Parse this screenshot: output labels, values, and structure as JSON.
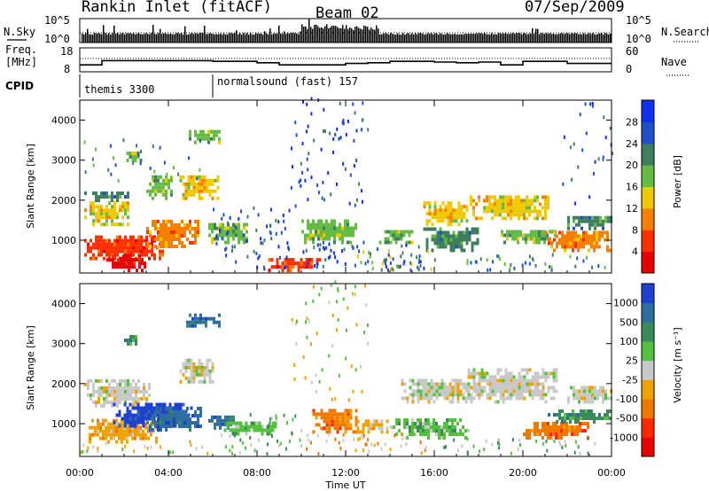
{
  "header": {
    "station": "Rankin Inlet (fitACF)",
    "beam": "Beam 02",
    "date": "07/Sep/2009"
  },
  "strips": {
    "nsky_label": "N.Sky",
    "nsky_ticks": [
      "10^5",
      "10^0"
    ],
    "nsearch_label": "N.Search",
    "nsearch_ticks": [
      "10^5",
      "10^0"
    ],
    "freq_label": "Freq.",
    "freq_unit": "[MHz]",
    "freq_ticks": [
      "18",
      "8"
    ],
    "nave_label": "Nave",
    "nave_ticks": [
      "60",
      "0"
    ],
    "cpid_label": "CPID",
    "cpid_segments": [
      {
        "name": "themis 3300",
        "start_hour": 0
      },
      {
        "name": "normalsound (fast) 157",
        "start_hour": 6
      }
    ]
  },
  "colors": {
    "power": [
      "#1030f0",
      "#2050c8",
      "#3e7e5e",
      "#66bb44",
      "#f0c800",
      "#f58000",
      "#ff3000",
      "#e60000"
    ],
    "velocity": [
      "#2040d0",
      "#2e6e9e",
      "#3b8b5a",
      "#55c040",
      "#c8c8c8",
      "#f0a000",
      "#f07800",
      "#ff2a00",
      "#e80000"
    ]
  },
  "chart_data": [
    {
      "type": "heatmap",
      "panel": "power",
      "ylabel": "Slant Range [km]",
      "y_ticks": [
        "4000",
        "3000",
        "2000",
        "1000"
      ],
      "ylim": [
        180,
        4500
      ],
      "x_ticks": [
        "00:00",
        "04:00",
        "08:00",
        "12:00",
        "16:00",
        "20:00",
        "00:00"
      ],
      "xlim_hours": [
        0,
        24
      ],
      "colorbar_label": "Power [dB]",
      "colorbar_ticks": [
        "28",
        "24",
        "20",
        "16",
        "12",
        "8",
        "4"
      ],
      "colorbar_range": [
        0,
        32
      ],
      "regions": [
        {
          "t": [
            0.2,
            3.8
          ],
          "r": [
            500,
            1100
          ],
          "level": 6
        },
        {
          "t": [
            3.0,
            5.4
          ],
          "r": [
            800,
            1500
          ],
          "level": 5
        },
        {
          "t": [
            0.2,
            2.2
          ],
          "r": [
            1350,
            1900
          ],
          "level": 4
        },
        {
          "t": [
            0.2,
            2.2
          ],
          "r": [
            1950,
            2200
          ],
          "level": 2
        },
        {
          "t": [
            1.2,
            3.0
          ],
          "r": [
            200,
            600
          ],
          "level": 7
        },
        {
          "t": [
            3.0,
            4.2
          ],
          "r": [
            2000,
            2600
          ],
          "level": 3
        },
        {
          "t": [
            4.5,
            6.2
          ],
          "r": [
            2000,
            2600
          ],
          "level": 4
        },
        {
          "t": [
            4.8,
            6.3
          ],
          "r": [
            3400,
            3700
          ],
          "level": 3
        },
        {
          "t": [
            2.1,
            2.8
          ],
          "r": [
            2950,
            3200
          ],
          "level": 3
        },
        {
          "t": [
            5.8,
            7.5
          ],
          "r": [
            900,
            1400
          ],
          "level": 3
        },
        {
          "t": [
            8.5,
            10.8
          ],
          "r": [
            200,
            500
          ],
          "level": 6
        },
        {
          "t": [
            10.0,
            12.5
          ],
          "r": [
            900,
            1450
          ],
          "level": 3
        },
        {
          "t": [
            13.5,
            15.0
          ],
          "r": [
            900,
            1250
          ],
          "level": 3
        },
        {
          "t": [
            15.5,
            17.5
          ],
          "r": [
            1350,
            1900
          ],
          "level": 4
        },
        {
          "t": [
            15.5,
            18.0
          ],
          "r": [
            700,
            1300
          ],
          "level": 2
        },
        {
          "t": [
            17.6,
            21.2
          ],
          "r": [
            1500,
            2100
          ],
          "level": 4
        },
        {
          "t": [
            19.0,
            21.5
          ],
          "r": [
            900,
            1250
          ],
          "level": 3
        },
        {
          "t": [
            21.0,
            24.0
          ],
          "r": [
            700,
            1200
          ],
          "level": 5
        },
        {
          "t": [
            22.0,
            24.0
          ],
          "r": [
            1250,
            1600
          ],
          "level": 2
        }
      ],
      "sparse": [
        {
          "t": [
            6.0,
            9.5
          ],
          "r": [
            200,
            1800
          ],
          "level": 1,
          "density": 0.12
        },
        {
          "t": [
            9.5,
            13.0
          ],
          "r": [
            1800,
            4500
          ],
          "level": 1,
          "density": 0.08
        },
        {
          "t": [
            10.0,
            15.5
          ],
          "r": [
            200,
            900
          ],
          "level": 1,
          "density": 0.18
        },
        {
          "t": [
            12.5,
            16.0
          ],
          "r": [
            200,
            700
          ],
          "level": 3,
          "density": 0.15
        },
        {
          "t": [
            17.0,
            24.0
          ],
          "r": [
            200,
            600
          ],
          "level": 2,
          "density": 0.15
        },
        {
          "t": [
            0.0,
            6.0
          ],
          "r": [
            2400,
            3500
          ],
          "level": 2,
          "density": 0.05
        },
        {
          "t": [
            21.5,
            24.0
          ],
          "r": [
            1800,
            4500
          ],
          "level": 1,
          "density": 0.04
        }
      ]
    },
    {
      "type": "heatmap",
      "panel": "velocity",
      "ylabel": "Slant Range [km]",
      "y_ticks": [
        "4000",
        "3000",
        "2000",
        "1000"
      ],
      "ylim": [
        180,
        4500
      ],
      "x_ticks": [
        "00:00",
        "04:00",
        "08:00",
        "12:00",
        "16:00",
        "20:00",
        "00:00"
      ],
      "xlim_hours": [
        0,
        24
      ],
      "xlabel": "Time UT",
      "colorbar_label": "Velocity [m s⁻¹]",
      "colorbar_ticks": [
        "1000",
        "500",
        "100",
        "25",
        "-25",
        "-100",
        "-500",
        "-1000"
      ],
      "regions": [
        {
          "t": [
            0.2,
            3.2
          ],
          "r": [
            1400,
            2100
          ],
          "level": 4
        },
        {
          "t": [
            0.4,
            3.5
          ],
          "r": [
            500,
            1100
          ],
          "level": 5
        },
        {
          "t": [
            1.5,
            5.0
          ],
          "r": [
            900,
            1500
          ],
          "level": 0
        },
        {
          "t": [
            3.0,
            5.5
          ],
          "r": [
            800,
            1350
          ],
          "level": 1
        },
        {
          "t": [
            4.5,
            6.0
          ],
          "r": [
            2000,
            2600
          ],
          "level": 4
        },
        {
          "t": [
            2.0,
            2.6
          ],
          "r": [
            2950,
            3200
          ],
          "level": 2
        },
        {
          "t": [
            4.8,
            6.3
          ],
          "r": [
            3400,
            3700
          ],
          "level": 1
        },
        {
          "t": [
            5.8,
            7.0
          ],
          "r": [
            850,
            1200
          ],
          "level": 1
        },
        {
          "t": [
            6.5,
            9.0
          ],
          "r": [
            700,
            1000
          ],
          "level": 3
        },
        {
          "t": [
            10.5,
            12.5
          ],
          "r": [
            750,
            1300
          ],
          "level": 6
        },
        {
          "t": [
            12.5,
            14.0
          ],
          "r": [
            750,
            1100
          ],
          "level": 5
        },
        {
          "t": [
            14.5,
            18.0
          ],
          "r": [
            1500,
            2100
          ],
          "level": 4
        },
        {
          "t": [
            17.5,
            21.5
          ],
          "r": [
            1500,
            2300
          ],
          "level": 4
        },
        {
          "t": [
            14.0,
            17.5
          ],
          "r": [
            600,
            1100
          ],
          "level": 3
        },
        {
          "t": [
            20.0,
            23.0
          ],
          "r": [
            600,
            1000
          ],
          "level": 6
        },
        {
          "t": [
            21.0,
            24.0
          ],
          "r": [
            1000,
            1300
          ],
          "level": 2
        },
        {
          "t": [
            22.0,
            24.0
          ],
          "r": [
            1500,
            1900
          ],
          "level": 4
        }
      ],
      "sparse": [
        {
          "t": [
            6.0,
            10.0
          ],
          "r": [
            200,
            1200
          ],
          "level": 3,
          "density": 0.12
        },
        {
          "t": [
            10.0,
            16.0
          ],
          "r": [
            200,
            700
          ],
          "level": 5,
          "density": 0.15
        },
        {
          "t": [
            9.5,
            13.0
          ],
          "r": [
            1500,
            4500
          ],
          "level": 4,
          "density": 0.06
        },
        {
          "t": [
            16.0,
            24.0
          ],
          "r": [
            200,
            600
          ],
          "level": 3,
          "density": 0.14
        },
        {
          "t": [
            0.0,
            6.0
          ],
          "r": [
            200,
            500
          ],
          "level": 4,
          "density": 0.15
        }
      ]
    }
  ]
}
